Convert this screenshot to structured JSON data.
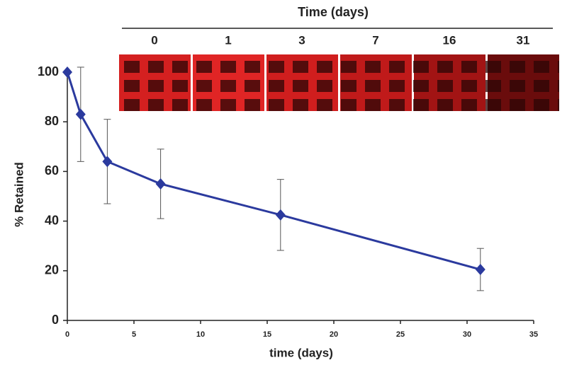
{
  "chart_data": {
    "type": "line",
    "xlabel": "time (days)",
    "ylabel": "% Retained",
    "x": [
      0,
      1,
      3,
      7,
      16,
      31
    ],
    "series": [
      {
        "color": "#2b3a9e",
        "values": [
          100,
          83,
          64,
          55,
          42.5,
          20.5
        ],
        "errors": [
          0,
          19,
          17,
          14,
          14.3,
          8.5
        ]
      }
    ],
    "xlim": [
      0,
      35
    ],
    "xticks": [
      0,
      5,
      10,
      15,
      20,
      25,
      30,
      35
    ],
    "ylim": [
      0,
      100
    ],
    "yticks": [
      0,
      20,
      40,
      60,
      80,
      100
    ],
    "inset": {
      "title": "Time (days)",
      "labels": [
        "0",
        "1",
        "3",
        "7",
        "16",
        "31"
      ]
    }
  }
}
